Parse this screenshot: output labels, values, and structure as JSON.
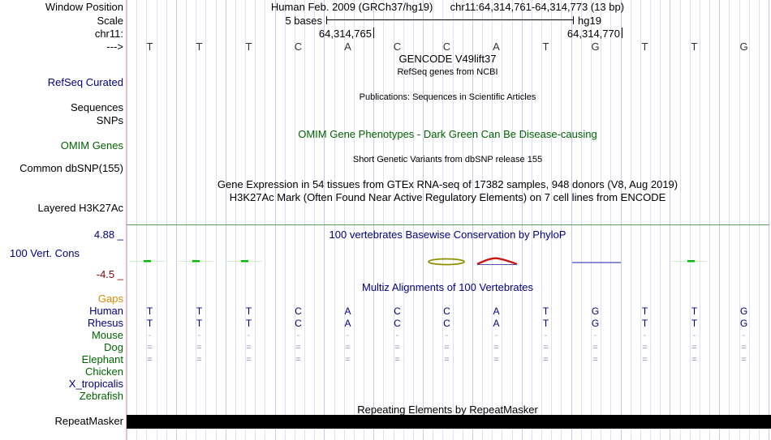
{
  "colors": {
    "navy": "#000080",
    "green": "#006400",
    "orange": "#DD8800",
    "dark_red": "#8B0000",
    "grid_minor": "#E0DFF2",
    "grid_major": "#C9C9E6",
    "separator_pink": "#FFB3B3",
    "green_border": "#55A055",
    "repeat_bar": "#000000",
    "cons_green": "#00BB00",
    "cons_green_halo": "#CCEFCC",
    "cons_olive": "#8F8F00",
    "cons_red": "#CC1111",
    "cons_underline": "#5050A0",
    "cons_blue": "#6666CC"
  },
  "header": {
    "assembly_title": "Human Feb. 2009 (GRCh37/hg19)",
    "range_title": "chr11:64,314,761-64,314,773 (13 bp)",
    "scale_value": "5 bases",
    "assembly_short": "hg19",
    "coord_left": "64,314,765",
    "coord_right": "64,314,770"
  },
  "left_labels": {
    "window_position": "Window Position",
    "scale": "Scale",
    "chrom": "chr11:",
    "strand": "--->",
    "refseq_curated": "RefSeq Curated",
    "sequences": "Sequences",
    "snps": "SNPs",
    "omim_genes": "OMIM Genes",
    "common_dbsnp": "Common dbSNP(155)",
    "layered_h3k27ac": "Layered H3K27Ac",
    "cons_max": "4.88 _",
    "cons_track": "100 Vert. Cons",
    "cons_min": "-4.5 _",
    "repeatmasker": "RepeatMasker"
  },
  "track_titles": {
    "gencode": "GENCODE V49lift37",
    "refseq": "RefSeq genes from NCBI",
    "publications": "Publications: Sequences in Scientific Articles",
    "omim": "OMIM Gene Phenotypes - Dark Green Can Be Disease-causing",
    "dbsnp": "Short Genetic Variants from dbSNP release 155",
    "gtex": "Gene Expression in 54 tissues from GTEx RNA-seq of 17382 samples, 948 donors (V8, Aug 2019)",
    "h3k27ac": "H3K27Ac Mark (Often Found Near Active Regulatory Elements) on 7 cell lines from ENCODE",
    "phylop": "100 vertebrates Basewise Conservation by PhyloP",
    "multiz": "Multiz Alignments of 100 Vertebrates",
    "repeatmasker": "Repeating Elements by RepeatMasker"
  },
  "sequence": {
    "bases": [
      "T",
      "T",
      "T",
      "C",
      "A",
      "C",
      "C",
      "A",
      "T",
      "G",
      "T",
      "T",
      "G"
    ]
  },
  "alignment": {
    "species": [
      {
        "name": "Gaps",
        "label_color": "#DD8800",
        "cell_color": "#000080",
        "cells": [
          "",
          "",
          "",
          "",
          "",
          "",
          "",
          "",
          "",
          "",
          "",
          "",
          ""
        ]
      },
      {
        "name": "Human",
        "label_color": "#000080",
        "cell_color": "#000080",
        "cells": [
          "T",
          "T",
          "T",
          "C",
          "A",
          "C",
          "C",
          "A",
          "T",
          "G",
          "T",
          "T",
          "G"
        ]
      },
      {
        "name": "Rhesus",
        "label_color": "#000080",
        "cell_color": "#000080",
        "cells": [
          "T",
          "T",
          "T",
          "C",
          "A",
          "C",
          "C",
          "A",
          "T",
          "G",
          "T",
          "T",
          "G"
        ]
      },
      {
        "name": "Mouse",
        "label_color": "#006400",
        "cell_color": "#A8A8C8",
        "cells": [
          "-",
          "-",
          "-",
          "-",
          "-",
          "-",
          "-",
          "-",
          "-",
          "-",
          "-",
          "-",
          "-"
        ]
      },
      {
        "name": "Dog",
        "label_color": "#006400",
        "cell_color": "#8888BB",
        "cells": [
          "=",
          "=",
          "=",
          "=",
          "=",
          "=",
          "=",
          "=",
          "=",
          "=",
          "=",
          "=",
          "="
        ]
      },
      {
        "name": "Elephant",
        "label_color": "#006400",
        "cell_color": "#8888BB",
        "cells": [
          "=",
          "=",
          "=",
          "=",
          "=",
          "=",
          "=",
          "=",
          "=",
          "=",
          "=",
          "=",
          "="
        ]
      },
      {
        "name": "Chicken",
        "label_color": "#006400",
        "cell_color": "#000080",
        "cells": [
          "",
          "",
          "",
          "",
          "",
          "",
          "",
          "",
          "",
          "",
          "",
          "",
          ""
        ]
      },
      {
        "name": "X_tropicalis",
        "label_color": "#000080",
        "cell_color": "#000080",
        "cells": [
          "",
          "",
          "",
          "",
          "",
          "",
          "",
          "",
          "",
          "",
          "",
          "",
          ""
        ]
      },
      {
        "name": "Zebrafish",
        "label_color": "#006400",
        "cell_color": "#000080",
        "cells": [
          "",
          "",
          "",
          "",
          "",
          "",
          "",
          "",
          "",
          "",
          "",
          "",
          ""
        ]
      }
    ]
  }
}
